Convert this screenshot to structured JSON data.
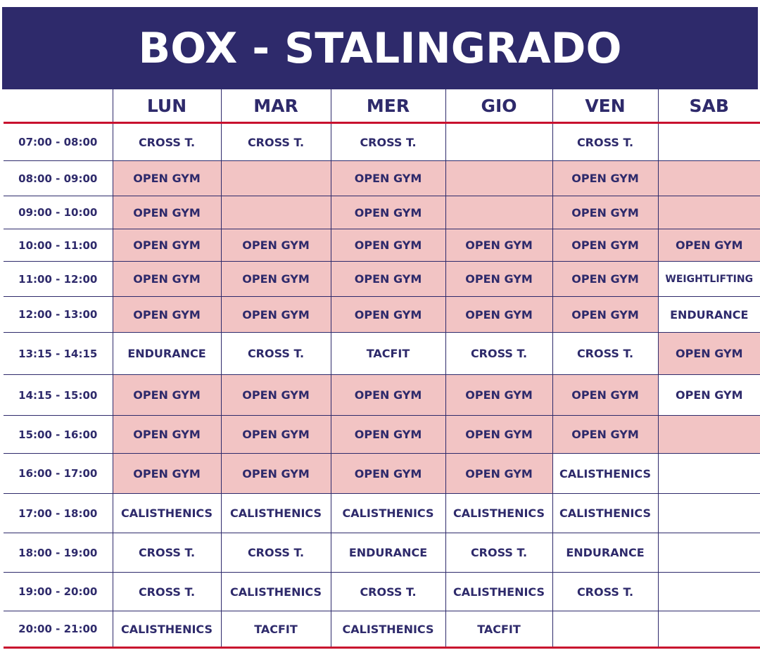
{
  "title": "BOX  - STALINGRADO",
  "days": [
    "LUN",
    "MAR",
    "MER",
    "GIO",
    "VEN",
    "SAB"
  ],
  "colors": {
    "header_bg": "#2e2a6b",
    "text": "#2e2a6b",
    "highlight": "#f2c4c4",
    "accent_line": "#c8102e"
  },
  "rows": [
    {
      "time": "07:00 - 08:00",
      "cells": [
        {
          "text": "CROSS T.",
          "hl": false
        },
        {
          "text": "CROSS T.",
          "hl": false
        },
        {
          "text": "CROSS T.",
          "hl": false
        },
        {
          "text": "",
          "hl": false
        },
        {
          "text": "CROSS T.",
          "hl": false
        },
        {
          "text": "",
          "hl": false
        }
      ]
    },
    {
      "time": "08:00 - 09:00",
      "cells": [
        {
          "text": "OPEN GYM",
          "hl": true
        },
        {
          "text": "",
          "hl": true
        },
        {
          "text": "OPEN GYM",
          "hl": true
        },
        {
          "text": "",
          "hl": true
        },
        {
          "text": "OPEN GYM",
          "hl": true
        },
        {
          "text": "",
          "hl": true
        }
      ]
    },
    {
      "time": "09:00 - 10:00",
      "cells": [
        {
          "text": "OPEN GYM",
          "hl": true
        },
        {
          "text": "",
          "hl": true
        },
        {
          "text": "OPEN GYM",
          "hl": true
        },
        {
          "text": "",
          "hl": true
        },
        {
          "text": "OPEN GYM",
          "hl": true
        },
        {
          "text": "",
          "hl": true
        }
      ]
    },
    {
      "time": "10:00 - 11:00",
      "cells": [
        {
          "text": "OPEN GYM",
          "hl": true
        },
        {
          "text": "OPEN GYM",
          "hl": true
        },
        {
          "text": "OPEN GYM",
          "hl": true
        },
        {
          "text": "OPEN GYM",
          "hl": true
        },
        {
          "text": "OPEN GYM",
          "hl": true
        },
        {
          "text": "OPEN GYM",
          "hl": true
        }
      ]
    },
    {
      "time": "11:00 - 12:00",
      "cells": [
        {
          "text": "OPEN GYM",
          "hl": true
        },
        {
          "text": "OPEN GYM",
          "hl": true
        },
        {
          "text": "OPEN GYM",
          "hl": true
        },
        {
          "text": "OPEN GYM",
          "hl": true
        },
        {
          "text": "OPEN GYM",
          "hl": true
        },
        {
          "text": "WEIGHTLIFTING",
          "hl": false
        }
      ]
    },
    {
      "time": "12:00 - 13:00",
      "cells": [
        {
          "text": "OPEN GYM",
          "hl": true
        },
        {
          "text": "OPEN GYM",
          "hl": true
        },
        {
          "text": "OPEN GYM",
          "hl": true
        },
        {
          "text": "OPEN GYM",
          "hl": true
        },
        {
          "text": "OPEN GYM",
          "hl": true
        },
        {
          "text": "ENDURANCE",
          "hl": false
        }
      ]
    },
    {
      "time": "13:15 - 14:15",
      "cells": [
        {
          "text": "ENDURANCE",
          "hl": false
        },
        {
          "text": "CROSS T.",
          "hl": false
        },
        {
          "text": "TACFIT",
          "hl": false
        },
        {
          "text": "CROSS T.",
          "hl": false
        },
        {
          "text": "CROSS T.",
          "hl": false
        },
        {
          "text": "OPEN GYM",
          "hl": true
        }
      ]
    },
    {
      "time": "14:15 - 15:00",
      "cells": [
        {
          "text": "OPEN GYM",
          "hl": true
        },
        {
          "text": "OPEN GYM",
          "hl": true
        },
        {
          "text": "OPEN GYM",
          "hl": true
        },
        {
          "text": "OPEN GYM",
          "hl": true
        },
        {
          "text": "OPEN GYM",
          "hl": true
        },
        {
          "text": "OPEN GYM",
          "hl": false
        }
      ]
    },
    {
      "time": "15:00 - 16:00",
      "cells": [
        {
          "text": "OPEN GYM",
          "hl": true
        },
        {
          "text": "OPEN GYM",
          "hl": true
        },
        {
          "text": "OPEN GYM",
          "hl": true
        },
        {
          "text": "OPEN GYM",
          "hl": true
        },
        {
          "text": "OPEN GYM",
          "hl": true
        },
        {
          "text": "",
          "hl": true
        }
      ]
    },
    {
      "time": "16:00 - 17:00",
      "cells": [
        {
          "text": "OPEN GYM",
          "hl": true
        },
        {
          "text": "OPEN GYM",
          "hl": true
        },
        {
          "text": "OPEN GYM",
          "hl": true
        },
        {
          "text": "OPEN GYM",
          "hl": true
        },
        {
          "text": "CALISTHENICS",
          "hl": false
        },
        {
          "text": "",
          "hl": false
        }
      ]
    },
    {
      "time": "17:00 - 18:00",
      "cells": [
        {
          "text": "CALISTHENICS",
          "hl": false
        },
        {
          "text": "CALISTHENICS",
          "hl": false
        },
        {
          "text": "CALISTHENICS",
          "hl": false
        },
        {
          "text": "CALISTHENICS",
          "hl": false
        },
        {
          "text": "CALISTHENICS",
          "hl": false
        },
        {
          "text": "",
          "hl": false
        }
      ]
    },
    {
      "time": "18:00 - 19:00",
      "cells": [
        {
          "text": "CROSS T.",
          "hl": false
        },
        {
          "text": "CROSS T.",
          "hl": false
        },
        {
          "text": "ENDURANCE",
          "hl": false
        },
        {
          "text": "CROSS T.",
          "hl": false
        },
        {
          "text": "ENDURANCE",
          "hl": false
        },
        {
          "text": "",
          "hl": false
        }
      ]
    },
    {
      "time": "19:00 - 20:00",
      "cells": [
        {
          "text": "CROSS T.",
          "hl": false
        },
        {
          "text": "CALISTHENICS",
          "hl": false
        },
        {
          "text": "CROSS T.",
          "hl": false
        },
        {
          "text": "CALISTHENICS",
          "hl": false
        },
        {
          "text": "CROSS T.",
          "hl": false
        },
        {
          "text": "",
          "hl": false
        }
      ]
    },
    {
      "time": "20:00 - 21:00",
      "cells": [
        {
          "text": "CALISTHENICS",
          "hl": false
        },
        {
          "text": "TACFIT",
          "hl": false
        },
        {
          "text": "CALISTHENICS",
          "hl": false
        },
        {
          "text": "TACFIT",
          "hl": false
        },
        {
          "text": "",
          "hl": false
        },
        {
          "text": "",
          "hl": false
        }
      ]
    }
  ]
}
